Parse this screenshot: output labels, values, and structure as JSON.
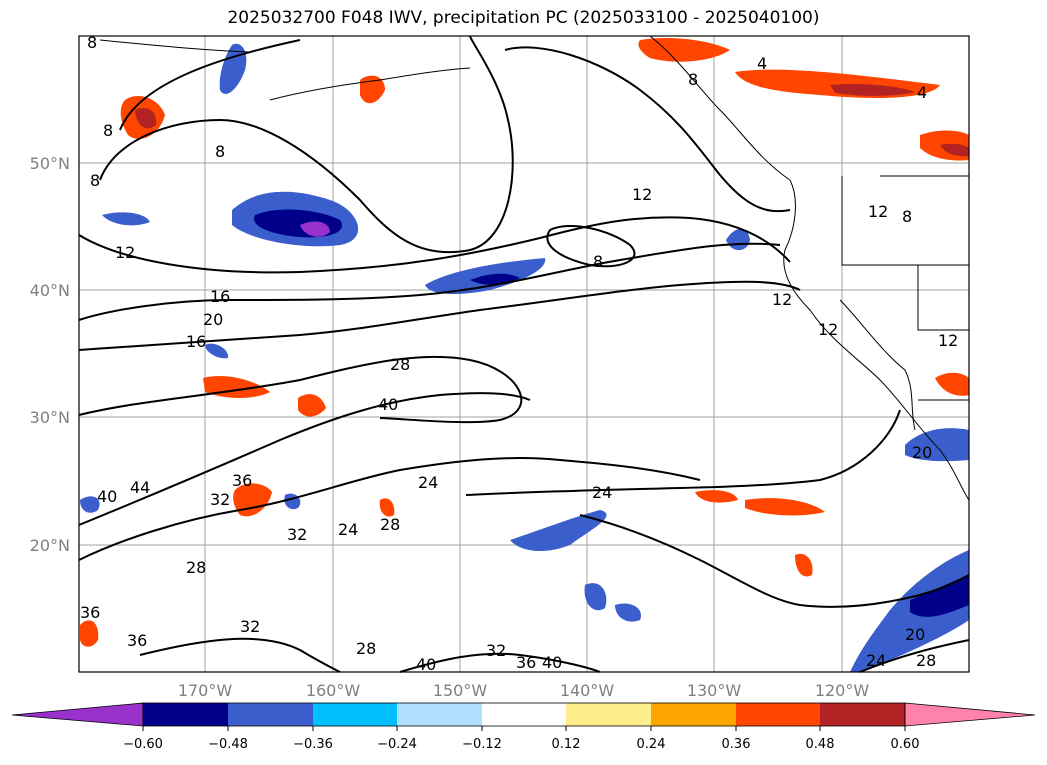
{
  "title": "2025032700 F048 IWV, precipitation PC (2025033100 - 2025040100)",
  "lat_labels": [
    "50°N",
    "40°N",
    "30°N",
    "20°N"
  ],
  "lon_labels": [
    "170°W",
    "160°W",
    "150°W",
    "140°W",
    "130°W",
    "120°W"
  ],
  "contour_labels": [
    "8",
    "8",
    "8",
    "8",
    "8",
    "4",
    "4",
    "8",
    "12",
    "12",
    "12",
    "12",
    "16",
    "16",
    "20",
    "20",
    "28",
    "40",
    "36",
    "32",
    "44",
    "40",
    "24",
    "24",
    "28",
    "24",
    "28",
    "32",
    "32",
    "36",
    "40",
    "40",
    "36",
    "28",
    "32",
    "24",
    "20",
    "28",
    "36",
    "12",
    "12",
    "8"
  ],
  "colorbar": {
    "ticks": [
      "−0.60",
      "−0.48",
      "−0.36",
      "−0.24",
      "−0.12",
      "0.12",
      "0.24",
      "0.36",
      "0.48",
      "0.60"
    ],
    "colors": [
      "#9932cc",
      "#00008b",
      "#3a5fcd",
      "#00bfff",
      "#b0e2ff",
      "#ffffff",
      "#ffec8b",
      "#ffa500",
      "#ff4500",
      "#b22222",
      "#ff82ab"
    ]
  },
  "colors": {
    "coast": "#000000",
    "grid": "#a0a0a0",
    "contour": "#000000"
  }
}
